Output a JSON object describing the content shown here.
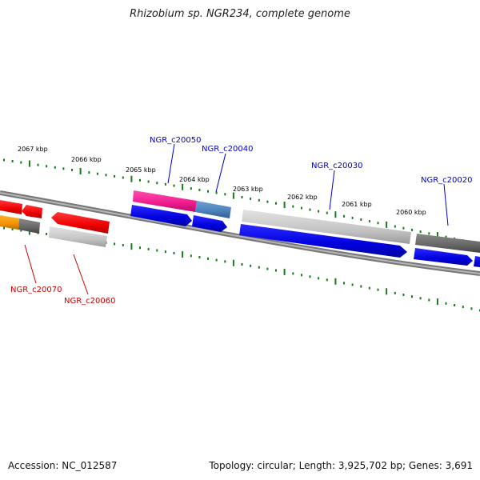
{
  "title": "Rhizobium sp. NGR234, complete genome",
  "footer": {
    "accession": "Accession: NC_012587",
    "summary": "Topology: circular; Length: 3,925,702 bp; Genes: 3,691"
  },
  "colors": {
    "tick": "#1a7a1a",
    "backbone": "#808080",
    "label_forward": "#0000cc",
    "label_reverse": "#cc0000"
  },
  "scale": {
    "labels": [
      {
        "text": "2067 kbp"
      },
      {
        "text": "2066 kbp"
      },
      {
        "text": "2065 kbp"
      },
      {
        "text": "2064 kbp"
      },
      {
        "text": "2063 kbp"
      },
      {
        "text": "2062 kbp"
      },
      {
        "text": "2061 kbp"
      },
      {
        "text": "2060 kbp"
      }
    ]
  },
  "genes": {
    "labels": [
      {
        "text": "NGR_c20050",
        "strand": "forward"
      },
      {
        "text": "NGR_c20040",
        "strand": "forward"
      },
      {
        "text": "NGR_c20030",
        "strand": "forward"
      },
      {
        "text": "NGR_c20020",
        "strand": "forward"
      },
      {
        "text": "NGR_c20070",
        "strand": "reverse"
      },
      {
        "text": "NGR_c20060",
        "strand": "reverse"
      }
    ]
  }
}
